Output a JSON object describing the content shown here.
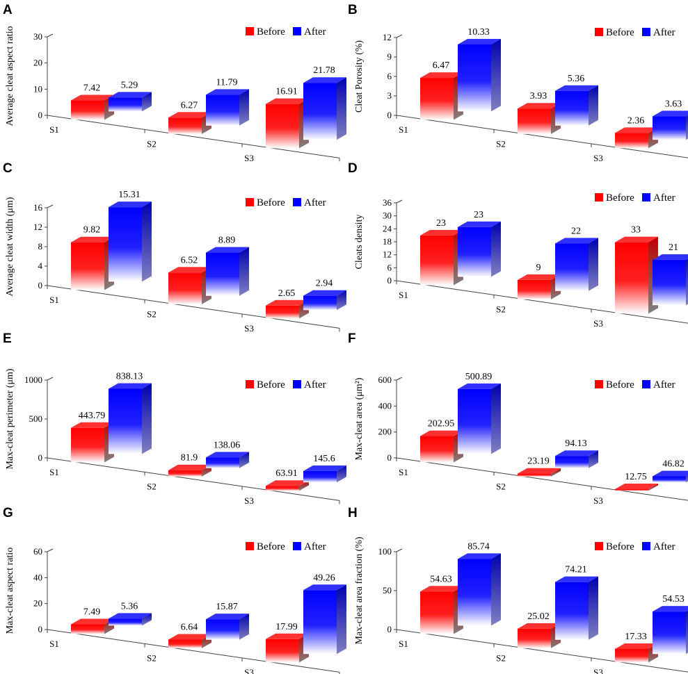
{
  "legend": {
    "before": "Before",
    "after": "After"
  },
  "colors": {
    "before": "#ff0000",
    "after": "#0000ff"
  },
  "chart_data": [
    {
      "panel": "A",
      "type": "bar",
      "title": "",
      "xlabel": "",
      "ylabel": "Average cleat aspect ratio",
      "categories": [
        "S1",
        "S2",
        "S3"
      ],
      "ylim": [
        0,
        30
      ],
      "yticks": [
        "0",
        "10",
        "20",
        "30"
      ],
      "series": [
        {
          "name": "Before",
          "values": [
            7.42,
            6.27,
            16.91
          ],
          "labels": [
            "7.42",
            "6.27",
            "16.91"
          ]
        },
        {
          "name": "After",
          "values": [
            5.29,
            11.79,
            21.78
          ],
          "labels": [
            "5.29",
            "11.79",
            "21.78"
          ]
        }
      ],
      "legend_position": "top-right"
    },
    {
      "panel": "B",
      "type": "bar",
      "title": "",
      "xlabel": "",
      "ylabel": "Cleat Porosity (%)",
      "categories": [
        "S1",
        "S2",
        "S3"
      ],
      "ylim": [
        0,
        12
      ],
      "yticks": [
        "0",
        "3",
        "6",
        "9",
        "12"
      ],
      "series": [
        {
          "name": "Before",
          "values": [
            6.47,
            3.93,
            2.36
          ],
          "labels": [
            "6.47",
            "3.93",
            "2.36"
          ]
        },
        {
          "name": "After",
          "values": [
            10.33,
            5.36,
            3.63
          ],
          "labels": [
            "10.33",
            "5.36",
            "3.63"
          ]
        }
      ],
      "legend_position": "top-right"
    },
    {
      "panel": "C",
      "type": "bar",
      "title": "",
      "xlabel": "",
      "ylabel": "Average cleat width (μm)",
      "categories": [
        "S1",
        "S2",
        "S3"
      ],
      "ylim": [
        0,
        16
      ],
      "yticks": [
        "0",
        "4",
        "8",
        "12",
        "16"
      ],
      "series": [
        {
          "name": "Before",
          "values": [
            9.82,
            6.52,
            2.65
          ],
          "labels": [
            "9.82",
            "6.52",
            "2.65"
          ]
        },
        {
          "name": "After",
          "values": [
            15.31,
            8.89,
            2.94
          ],
          "labels": [
            "15.31",
            "8.89",
            "2.94"
          ]
        }
      ],
      "legend_position": "top-right"
    },
    {
      "panel": "D",
      "type": "bar",
      "title": "",
      "xlabel": "",
      "ylabel": "Cleats density",
      "categories": [
        "S1",
        "S2",
        "S3"
      ],
      "ylim": [
        0,
        36
      ],
      "yticks": [
        "0",
        "6",
        "12",
        "18",
        "24",
        "30",
        "36"
      ],
      "series": [
        {
          "name": "Before",
          "values": [
            23,
            9,
            33
          ],
          "labels": [
            "23",
            "9",
            "33"
          ]
        },
        {
          "name": "After",
          "values": [
            23,
            22,
            21
          ],
          "labels": [
            "23",
            "22",
            "21"
          ]
        }
      ],
      "legend_position": "top-right"
    },
    {
      "panel": "E",
      "type": "bar",
      "title": "",
      "xlabel": "",
      "ylabel": "Max-cleat perimeter (μm)",
      "categories": [
        "S1",
        "S2",
        "S3"
      ],
      "ylim": [
        0,
        1000
      ],
      "yticks": [
        "0",
        "500",
        "1000"
      ],
      "series": [
        {
          "name": "Before",
          "values": [
            443.79,
            81.9,
            63.91
          ],
          "labels": [
            "443.79",
            "81.9",
            "63.91"
          ]
        },
        {
          "name": "After",
          "values": [
            838.13,
            138.06,
            145.6
          ],
          "labels": [
            "838.13",
            "138.06",
            "145.6"
          ]
        }
      ],
      "legend_position": "top-right"
    },
    {
      "panel": "F",
      "type": "bar",
      "title": "",
      "xlabel": "",
      "ylabel": "Max-cleat area (μm²)",
      "categories": [
        "S1",
        "S2",
        "S3"
      ],
      "ylim": [
        0,
        600
      ],
      "yticks": [
        "0",
        "200",
        "400",
        "600"
      ],
      "series": [
        {
          "name": "Before",
          "values": [
            202.95,
            23.19,
            12.75
          ],
          "labels": [
            "202.95",
            "23.19",
            "12.75"
          ]
        },
        {
          "name": "After",
          "values": [
            500.89,
            94.13,
            46.82
          ],
          "labels": [
            "500.89",
            "94.13",
            "46.82"
          ]
        }
      ],
      "legend_position": "top-right"
    },
    {
      "panel": "G",
      "type": "bar",
      "title": "",
      "xlabel": "",
      "ylabel": "Max-cleat aspect ratio",
      "categories": [
        "S1",
        "S2",
        "S3"
      ],
      "ylim": [
        0,
        60
      ],
      "yticks": [
        "0",
        "20",
        "40",
        "60"
      ],
      "series": [
        {
          "name": "Before",
          "values": [
            7.49,
            6.64,
            17.99
          ],
          "labels": [
            "7.49",
            "6.64",
            "17.99"
          ]
        },
        {
          "name": "After",
          "values": [
            5.36,
            15.87,
            49.26
          ],
          "labels": [
            "5.36",
            "15.87",
            "49.26"
          ]
        }
      ],
      "legend_position": "top-right"
    },
    {
      "panel": "H",
      "type": "bar",
      "title": "",
      "xlabel": "",
      "ylabel": "Max-cleat area fraction (%)",
      "categories": [
        "S1",
        "S2",
        "S3"
      ],
      "ylim": [
        0,
        100
      ],
      "yticks": [
        "0",
        "50",
        "100"
      ],
      "series": [
        {
          "name": "Before",
          "values": [
            54.63,
            25.02,
            17.33
          ],
          "labels": [
            "54.63",
            "25.02",
            "17.33"
          ]
        },
        {
          "name": "After",
          "values": [
            85.74,
            74.21,
            54.53
          ],
          "labels": [
            "85.74",
            "74.21",
            "54.53"
          ]
        }
      ],
      "legend_position": "top-right"
    }
  ]
}
